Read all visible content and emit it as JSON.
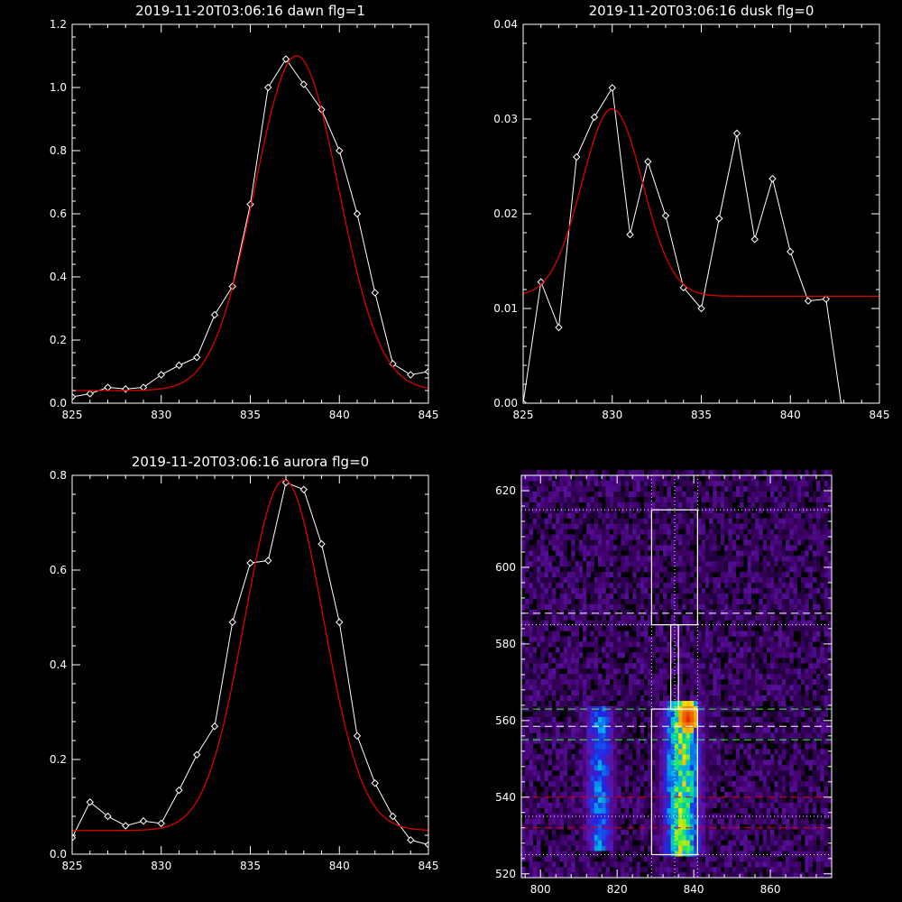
{
  "colors": {
    "background": "#000000",
    "observed": "#ffffff",
    "fit": "#dd0000"
  },
  "chart_data": [
    {
      "type": "line",
      "title": "2019-11-20T03:06:16 dawn flg=1",
      "xlim": [
        825,
        845
      ],
      "ylim": [
        0,
        1.2
      ],
      "xticks": [
        825,
        830,
        835,
        840,
        845
      ],
      "yticks": [
        0.0,
        0.2,
        0.4,
        0.6,
        0.8,
        1.0,
        1.2
      ],
      "ytick_labels": [
        "0.0",
        "0.2",
        "0.4",
        "0.6",
        "0.8",
        "1.0",
        "1.2"
      ],
      "series": [
        {
          "role": "observed",
          "color": "#ffffff",
          "marker": "diamond",
          "x": [
            825,
            826,
            827,
            828,
            829,
            830,
            831,
            832,
            833,
            834,
            835,
            836,
            837,
            838,
            839,
            840,
            841,
            842,
            843,
            844,
            845
          ],
          "y": [
            0.02,
            0.03,
            0.05,
            0.045,
            0.05,
            0.09,
            0.12,
            0.145,
            0.28,
            0.37,
            0.63,
            1.0,
            1.09,
            1.01,
            0.93,
            0.8,
            0.6,
            0.35,
            0.125,
            0.09,
            0.1
          ]
        },
        {
          "role": "fit",
          "color": "#dd0000",
          "shape": "gaussian",
          "base": 0.04,
          "amp": 1.06,
          "center": 837.6,
          "sigma": 2.35
        }
      ]
    },
    {
      "type": "line",
      "title": "2019-11-20T03:06:16 dusk flg=0",
      "xlim": [
        825,
        845
      ],
      "ylim": [
        0,
        0.04
      ],
      "xticks": [
        825,
        830,
        835,
        840,
        845
      ],
      "yticks": [
        0.0,
        0.01,
        0.02,
        0.03,
        0.04
      ],
      "ytick_labels": [
        "0.00",
        "0.01",
        "0.02",
        "0.03",
        "0.04"
      ],
      "series": [
        {
          "role": "observed",
          "color": "#ffffff",
          "marker": "diamond",
          "x": [
            825,
            826,
            827,
            828,
            829,
            830,
            831,
            832,
            833,
            834,
            835,
            836,
            837,
            838,
            839,
            840,
            841,
            842,
            843,
            844,
            845
          ],
          "y": [
            0.0,
            0.0128,
            0.008,
            0.026,
            0.0302,
            0.0333,
            0.0178,
            0.0255,
            0.0198,
            0.0122,
            0.01,
            0.0195,
            0.0285,
            0.0173,
            0.0237,
            0.016,
            0.0108,
            0.011,
            -0.002,
            -0.002,
            -0.002
          ]
        },
        {
          "role": "fit",
          "color": "#dd0000",
          "shape": "gaussian",
          "base": 0.0113,
          "amp": 0.0198,
          "center": 830.0,
          "sigma": 1.7
        }
      ]
    },
    {
      "type": "line",
      "title": "2019-11-20T03:06:16 aurora flg=0",
      "xlim": [
        825,
        845
      ],
      "ylim": [
        0,
        0.8
      ],
      "xticks": [
        825,
        830,
        835,
        840,
        845
      ],
      "yticks": [
        0.0,
        0.2,
        0.4,
        0.6,
        0.8
      ],
      "ytick_labels": [
        "0.0",
        "0.2",
        "0.4",
        "0.6",
        "0.8"
      ],
      "series": [
        {
          "role": "observed",
          "color": "#ffffff",
          "marker": "diamond",
          "x": [
            825,
            826,
            827,
            828,
            829,
            830,
            831,
            832,
            833,
            834,
            835,
            836,
            837,
            838,
            839,
            840,
            841,
            842,
            843,
            844,
            845
          ],
          "y": [
            0.035,
            0.11,
            0.08,
            0.06,
            0.07,
            0.065,
            0.135,
            0.21,
            0.27,
            0.49,
            0.615,
            0.62,
            0.785,
            0.77,
            0.655,
            0.49,
            0.25,
            0.15,
            0.08,
            0.03,
            0.02
          ]
        },
        {
          "role": "fit",
          "color": "#dd0000",
          "shape": "gaussian",
          "base": 0.05,
          "amp": 0.74,
          "center": 836.9,
          "sigma": 2.2
        }
      ]
    },
    {
      "type": "heatmap",
      "xlim": [
        795,
        876
      ],
      "ylim": [
        519,
        624
      ],
      "xticks": [
        800,
        820,
        840,
        860
      ],
      "yticks": [
        520,
        540,
        560,
        580,
        600,
        620
      ],
      "bands": [
        {
          "x_center": 815.5,
          "half_width": 3.5,
          "y_range": [
            526,
            562
          ],
          "intensity": 0.55
        },
        {
          "x_center": 837.0,
          "half_width": 4.5,
          "y_range": [
            525,
            563
          ],
          "intensity": 0.85,
          "hot_spot": [
            838,
            560
          ]
        }
      ],
      "boxes": [
        {
          "x": [
            829,
            841
          ],
          "y": [
            525,
            563
          ]
        },
        {
          "x": [
            834,
            836
          ],
          "y": [
            563,
            585
          ]
        },
        {
          "x": [
            829,
            841
          ],
          "y": [
            585,
            615
          ]
        }
      ],
      "vertical_dotted_lines": [
        829,
        835,
        841
      ],
      "horizontal_lines": [
        {
          "y": 615,
          "style": "dotted",
          "color": "#ffffff"
        },
        {
          "y": 588,
          "style": "dashed",
          "color": "#ffffff"
        },
        {
          "y": 585,
          "style": "dotted",
          "color": "#ffffff"
        },
        {
          "y": 563,
          "style": "dashed",
          "color": "#33ff33"
        },
        {
          "y": 558.5,
          "style": "dashed",
          "color": "#ffffff"
        },
        {
          "y": 555,
          "style": "dashed",
          "color": "#33ff33"
        },
        {
          "y": 540,
          "style": "dashed",
          "color": "#dd0000"
        },
        {
          "y": 535,
          "style": "dotted",
          "color": "#ffffff"
        },
        {
          "y": 532,
          "style": "dashed",
          "color": "#dd0000"
        },
        {
          "y": 525,
          "style": "dotted",
          "color": "#ffffff"
        }
      ]
    }
  ]
}
